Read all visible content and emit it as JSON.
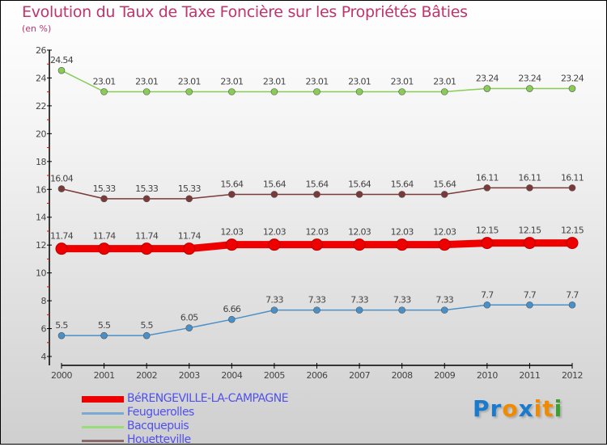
{
  "chart_data": {
    "type": "line",
    "title": "Evolution du Taux de Taxe Foncière sur les Propriétés Bâties",
    "subtitle": "(en %)",
    "x": [
      2000,
      2001,
      2002,
      2003,
      2004,
      2005,
      2006,
      2007,
      2008,
      2009,
      2010,
      2011,
      2012
    ],
    "ylim": [
      4,
      26
    ],
    "yticks": [
      4,
      6,
      8,
      10,
      12,
      14,
      16,
      18,
      20,
      22,
      24,
      26
    ],
    "series": [
      {
        "name": "BéRENGEVILLE-LA-CAMPAGNE",
        "color": "#ee0000",
        "values": [
          11.74,
          11.74,
          11.74,
          11.74,
          12.03,
          12.03,
          12.03,
          12.03,
          12.03,
          12.03,
          12.15,
          12.15,
          12.15
        ]
      },
      {
        "name": "Feuguerolles",
        "color": "#4a90c8",
        "values": [
          5.5,
          5.5,
          5.5,
          6.05,
          6.66,
          7.33,
          7.33,
          7.33,
          7.33,
          7.33,
          7.7,
          7.7,
          7.7
        ]
      },
      {
        "name": "Bacquepuis",
        "color": "#88cc55",
        "values": [
          24.54,
          23.01,
          23.01,
          23.01,
          23.01,
          23.01,
          23.01,
          23.01,
          23.01,
          23.01,
          23.24,
          23.24,
          23.24
        ]
      },
      {
        "name": "Houetteville",
        "color": "#7a3a3a",
        "values": [
          16.04,
          15.33,
          15.33,
          15.33,
          15.64,
          15.64,
          15.64,
          15.64,
          15.64,
          15.64,
          16.11,
          16.11,
          16.11
        ]
      }
    ],
    "legend": "bottom-left"
  },
  "logo": {
    "text": "Proxiti"
  }
}
